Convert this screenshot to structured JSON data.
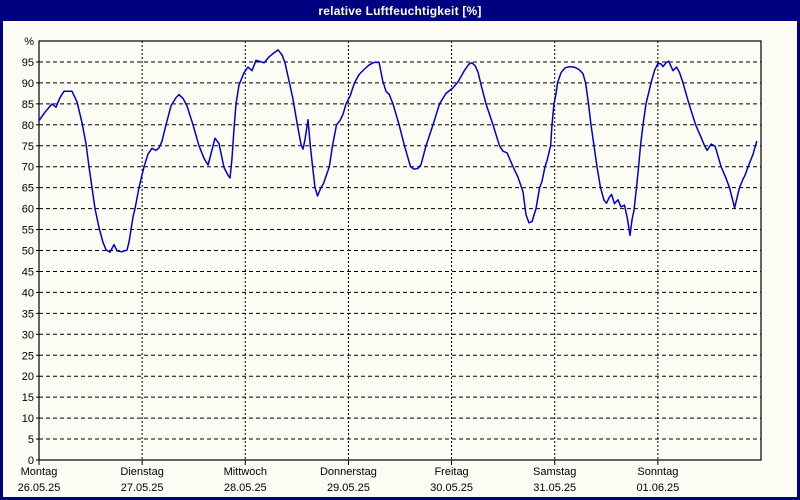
{
  "window": {
    "title": "relative Luftfeuchtigkeit [%]"
  },
  "colors": {
    "titlebar_bg": "#000080",
    "window_border": "#000080",
    "content_bg": "#FCFCF4",
    "line": "#0000CD",
    "grid": "#000000",
    "text": "#000000"
  },
  "chart_data": {
    "type": "line",
    "title": "relative Luftfeuchtigkeit [%]",
    "ylabel": "%",
    "y_unit_symbol": "%",
    "ylim": [
      0,
      100
    ],
    "y_ticks": [
      0,
      5,
      10,
      15,
      20,
      25,
      30,
      35,
      40,
      45,
      50,
      55,
      60,
      65,
      70,
      75,
      80,
      85,
      90,
      95
    ],
    "grid": {
      "horizontal": "dashed",
      "vertical": "fine-dashed"
    },
    "legend_position": "none",
    "x_axis_days": [
      {
        "name": "Montag",
        "date": "26.05.25"
      },
      {
        "name": "Dienstag",
        "date": "27.05.25"
      },
      {
        "name": "Mittwoch",
        "date": "28.05.25"
      },
      {
        "name": "Donnerstag",
        "date": "29.05.25"
      },
      {
        "name": "Freitag",
        "date": "30.05.25"
      },
      {
        "name": "Samstag",
        "date": "31.05.25"
      },
      {
        "name": "Sonntag",
        "date": "01.06.25"
      }
    ],
    "x_span_days": 7,
    "series": [
      {
        "name": "relative Luftfeuchtigkeit [%]",
        "color": "#0000CD",
        "points_day_value": [
          [
            0.0,
            81
          ],
          [
            0.058,
            83
          ],
          [
            0.126,
            85
          ],
          [
            0.165,
            84.2
          ],
          [
            0.204,
            86.5
          ],
          [
            0.242,
            88
          ],
          [
            0.32,
            88
          ],
          [
            0.368,
            85.5
          ],
          [
            0.417,
            80.5
          ],
          [
            0.456,
            75.5
          ],
          [
            0.485,
            70
          ],
          [
            0.514,
            65
          ],
          [
            0.543,
            60
          ],
          [
            0.582,
            55.5
          ],
          [
            0.62,
            52
          ],
          [
            0.65,
            50.2
          ],
          [
            0.688,
            49.6
          ],
          [
            0.727,
            51.4
          ],
          [
            0.756,
            49.9
          ],
          [
            0.805,
            49.7
          ],
          [
            0.853,
            50.1
          ],
          [
            0.873,
            52
          ],
          [
            0.892,
            55
          ],
          [
            0.911,
            58
          ],
          [
            0.931,
            60
          ],
          [
            0.97,
            65
          ],
          [
            1.018,
            70
          ],
          [
            1.057,
            73
          ],
          [
            1.096,
            74.4
          ],
          [
            1.134,
            73.9
          ],
          [
            1.163,
            74.5
          ],
          [
            1.192,
            76
          ],
          [
            1.231,
            80
          ],
          [
            1.28,
            84.5
          ],
          [
            1.328,
            86.5
          ],
          [
            1.357,
            87.2
          ],
          [
            1.396,
            86.3
          ],
          [
            1.435,
            84.5
          ],
          [
            1.493,
            80
          ],
          [
            1.551,
            75
          ],
          [
            1.6,
            72
          ],
          [
            1.639,
            70.4
          ],
          [
            1.677,
            74
          ],
          [
            1.706,
            76.8
          ],
          [
            1.745,
            75.5
          ],
          [
            1.794,
            69.8
          ],
          [
            1.832,
            68
          ],
          [
            1.852,
            67.3
          ],
          [
            1.871,
            72
          ],
          [
            1.891,
            79
          ],
          [
            1.91,
            85
          ],
          [
            1.939,
            89.5
          ],
          [
            1.988,
            92.4
          ],
          [
            2.026,
            93.8
          ],
          [
            2.065,
            92.9
          ],
          [
            2.104,
            95.4
          ],
          [
            2.143,
            95.1
          ],
          [
            2.182,
            94.8
          ],
          [
            2.23,
            96.2
          ],
          [
            2.269,
            97
          ],
          [
            2.317,
            97.9
          ],
          [
            2.356,
            96.7
          ],
          [
            2.385,
            94.8
          ],
          [
            2.424,
            90.5
          ],
          [
            2.46,
            86.5
          ],
          [
            2.501,
            80.5
          ],
          [
            2.54,
            75.3
          ],
          [
            2.56,
            74.2
          ],
          [
            2.579,
            76.5
          ],
          [
            2.608,
            81.2
          ],
          [
            2.63,
            75
          ],
          [
            2.653,
            70
          ],
          [
            2.676,
            65
          ],
          [
            2.686,
            64.3
          ],
          [
            2.7,
            63
          ],
          [
            2.734,
            65
          ],
          [
            2.758,
            66
          ],
          [
            2.815,
            70
          ],
          [
            2.846,
            75
          ],
          [
            2.884,
            80
          ],
          [
            2.918,
            81
          ],
          [
            2.947,
            82.5
          ],
          [
            2.976,
            85
          ],
          [
            3.015,
            86.8
          ],
          [
            3.059,
            90
          ],
          [
            3.103,
            92
          ],
          [
            3.151,
            93.2
          ],
          [
            3.2,
            94.3
          ],
          [
            3.248,
            94.9
          ],
          [
            3.297,
            94.9
          ],
          [
            3.332,
            90.5
          ],
          [
            3.364,
            88
          ],
          [
            3.394,
            87.3
          ],
          [
            3.432,
            85
          ],
          [
            3.491,
            80
          ],
          [
            3.544,
            75
          ],
          [
            3.602,
            70
          ],
          [
            3.636,
            69.4
          ],
          [
            3.675,
            69.6
          ],
          [
            3.704,
            70.5
          ],
          [
            3.752,
            75
          ],
          [
            3.82,
            80
          ],
          [
            3.883,
            85
          ],
          [
            3.946,
            87.5
          ],
          [
            4.014,
            88.8
          ],
          [
            4.063,
            90.3
          ],
          [
            4.126,
            93
          ],
          [
            4.169,
            94.5
          ],
          [
            4.198,
            94.8
          ],
          [
            4.228,
            94.1
          ],
          [
            4.257,
            92.5
          ],
          [
            4.281,
            90
          ],
          [
            4.334,
            85
          ],
          [
            4.402,
            80
          ],
          [
            4.465,
            75
          ],
          [
            4.499,
            73.7
          ],
          [
            4.538,
            73.3
          ],
          [
            4.596,
            70
          ],
          [
            4.644,
            67.5
          ],
          [
            4.693,
            64
          ],
          [
            4.722,
            58.5
          ],
          [
            4.751,
            56.6
          ],
          [
            4.78,
            56.9
          ],
          [
            4.819,
            60
          ],
          [
            4.853,
            65
          ],
          [
            4.877,
            66.5
          ],
          [
            4.906,
            70
          ],
          [
            4.926,
            71.5
          ],
          [
            4.96,
            75
          ],
          [
            4.974,
            80
          ],
          [
            4.993,
            85
          ],
          [
            5.013,
            87.5
          ],
          [
            5.027,
            90
          ],
          [
            5.061,
            92.4
          ],
          [
            5.1,
            93.6
          ],
          [
            5.148,
            93.9
          ],
          [
            5.197,
            93.7
          ],
          [
            5.236,
            93.2
          ],
          [
            5.274,
            92.2
          ],
          [
            5.299,
            90
          ],
          [
            5.328,
            85
          ],
          [
            5.352,
            80
          ],
          [
            5.381,
            75
          ],
          [
            5.41,
            70
          ],
          [
            5.444,
            65
          ],
          [
            5.478,
            62
          ],
          [
            5.502,
            61.3
          ],
          [
            5.527,
            62.6
          ],
          [
            5.551,
            63.4
          ],
          [
            5.58,
            61.2
          ],
          [
            5.614,
            62.1
          ],
          [
            5.643,
            60.4
          ],
          [
            5.677,
            60.8
          ],
          [
            5.706,
            57.5
          ],
          [
            5.73,
            53.6
          ],
          [
            5.75,
            57.5
          ],
          [
            5.769,
            59.6
          ],
          [
            5.793,
            65
          ],
          [
            5.813,
            70
          ],
          [
            5.832,
            75
          ],
          [
            5.856,
            80
          ],
          [
            5.885,
            85
          ],
          [
            5.934,
            90
          ],
          [
            5.968,
            93
          ],
          [
            6.002,
            94.7
          ],
          [
            6.031,
            94.5
          ],
          [
            6.05,
            93.9
          ],
          [
            6.079,
            94.8
          ],
          [
            6.104,
            95.2
          ],
          [
            6.147,
            92.9
          ],
          [
            6.181,
            93.8
          ],
          [
            6.21,
            92.5
          ],
          [
            6.244,
            90
          ],
          [
            6.302,
            85
          ],
          [
            6.366,
            80
          ],
          [
            6.419,
            77
          ],
          [
            6.453,
            75
          ],
          [
            6.477,
            73.9
          ],
          [
            6.516,
            75.4
          ],
          [
            6.555,
            74.9
          ],
          [
            6.613,
            70
          ],
          [
            6.657,
            67.5
          ],
          [
            6.695,
            65
          ],
          [
            6.744,
            60.2
          ],
          [
            6.792,
            65
          ],
          [
            6.822,
            66.8
          ],
          [
            6.846,
            68
          ],
          [
            6.875,
            70
          ],
          [
            6.923,
            73
          ],
          [
            6.957,
            76
          ]
        ]
      }
    ]
  }
}
